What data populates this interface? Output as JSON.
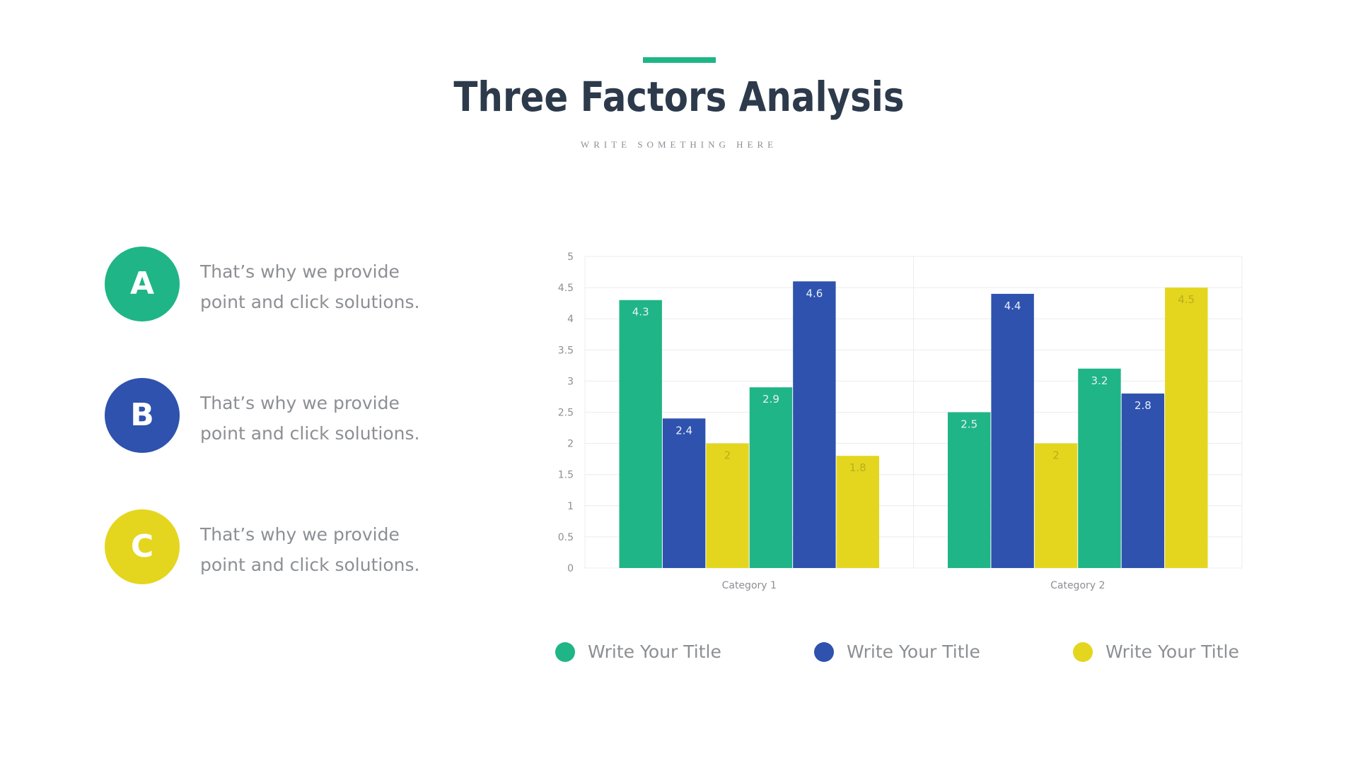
{
  "header": {
    "title": "Three Factors Analysis",
    "subtitle": "WRITE SOMETHING HERE",
    "accent_color": "#1fb587"
  },
  "factors": [
    {
      "letter": "A",
      "text_line1": "That’s why we provide",
      "text_line2": "point and click solutions.",
      "color": "#1fb587"
    },
    {
      "letter": "B",
      "text_line1": "That’s why we provide",
      "text_line2": "point and click solutions.",
      "color": "#2e52ae"
    },
    {
      "letter": "C",
      "text_line1": "That’s why we provide",
      "text_line2": "point and click solutions.",
      "color": "#e4d61e"
    }
  ],
  "chart_data": {
    "type": "bar",
    "categories": [
      "Category 1",
      "Category 2"
    ],
    "ylim": [
      0,
      5
    ],
    "yticks": [
      "0",
      "0.5",
      "1",
      "1.5",
      "2",
      "2.5",
      "3",
      "3.5",
      "4",
      "4.5",
      "5"
    ],
    "grid": true,
    "legend_position": "bottom",
    "groups": [
      {
        "category": "Category 1",
        "bars": [
          {
            "value": 4.3,
            "label": "4.3",
            "series": 0
          },
          {
            "value": 2.4,
            "label": "2.4",
            "series": 1
          },
          {
            "value": 2,
            "label": "2",
            "series": 2
          },
          {
            "value": 2.9,
            "label": "2.9",
            "series": 0
          },
          {
            "value": 4.6,
            "label": "4.6",
            "series": 1
          },
          {
            "value": 1.8,
            "label": "1.8",
            "series": 2
          }
        ]
      },
      {
        "category": "Category 2",
        "bars": [
          {
            "value": 2.5,
            "label": "2.5",
            "series": 0
          },
          {
            "value": 4.4,
            "label": "4.4",
            "series": 1
          },
          {
            "value": 2,
            "label": "2",
            "series": 2
          },
          {
            "value": 3.2,
            "label": "3.2",
            "series": 0
          },
          {
            "value": 2.8,
            "label": "2.8",
            "series": 1
          },
          {
            "value": 4.5,
            "label": "4.5",
            "series": 2
          }
        ]
      }
    ],
    "series": [
      {
        "name": "Write Your Title",
        "color": "#1fb587"
      },
      {
        "name": "Write Your Title",
        "color": "#2e52ae"
      },
      {
        "name": "Write Your Title",
        "color": "#e4d61e"
      }
    ]
  }
}
